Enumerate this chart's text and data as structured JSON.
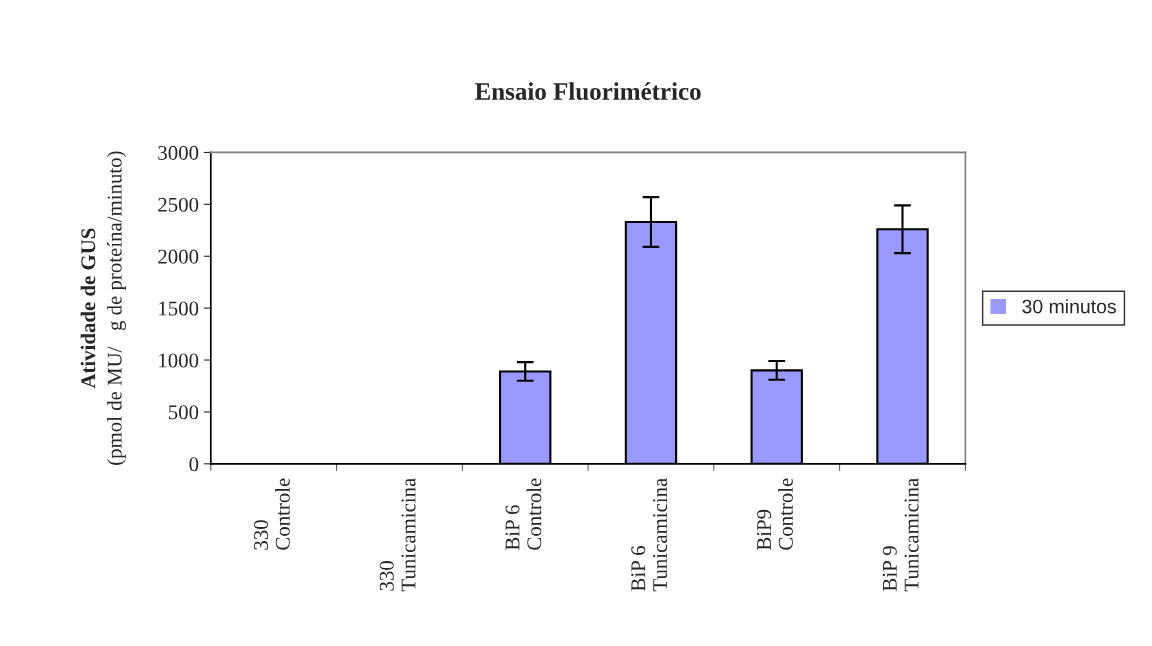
{
  "chart_data": {
    "type": "bar",
    "title": "Ensaio Fluorimétrico",
    "ylabel": "Atividade de GUS\n(pmol de MU/   g de proteína/minuto)",
    "categories": [
      "330\nControle",
      "330\nTunicamicina",
      "BiP 6\nControle",
      "BiP 6\nTunicamicina",
      "BiP9\nControle",
      "BiP 9\nTunicamicina"
    ],
    "series": [
      {
        "name": "30 minutos",
        "color": "#9999ff",
        "values": [
          0,
          0,
          890,
          2330,
          900,
          2260
        ],
        "errors": [
          null,
          null,
          90,
          240,
          90,
          230
        ]
      }
    ],
    "ylim": [
      0,
      3000
    ],
    "yticks": [
      0,
      500,
      1000,
      1500,
      2000,
      2500,
      3000
    ],
    "grid": false,
    "legend": "right"
  }
}
